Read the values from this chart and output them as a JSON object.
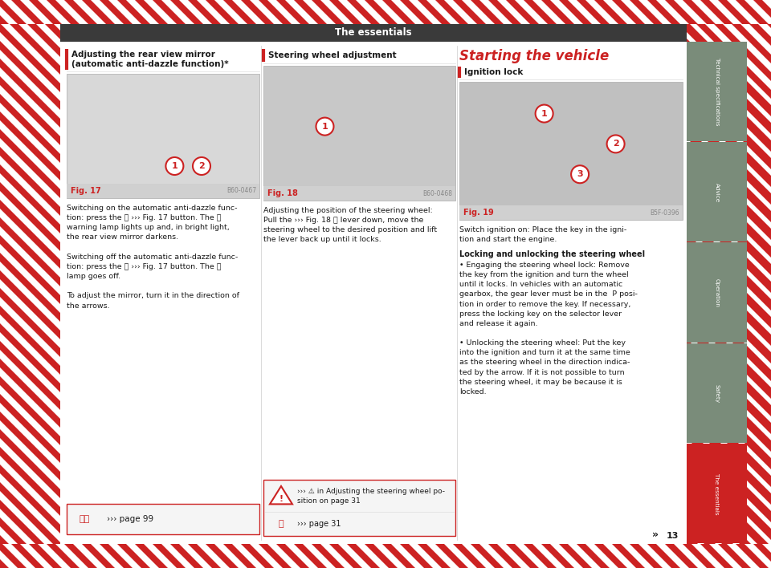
{
  "page_bg": "#ffffff",
  "hatch_red": "#cc2222",
  "header_bg": "#3a3a3a",
  "header_text": "The essentials",
  "header_text_color": "#ffffff",
  "tab_bg_gray": "#7a8c7a",
  "tab_bg_active": "#cc2222",
  "tab_text_color": "#ffffff",
  "tabs": [
    "Technical specifications",
    "Advice",
    "Operation",
    "Safety",
    "The essentials"
  ],
  "red_color": "#cc2222",
  "body_color": "#1a1a1a",
  "page_number": "13",
  "double_arrow": "»",
  "section1_title_line1": "Adjusting the rear view mirror",
  "section1_title_line2": "(automatic anti-dazzle function)*",
  "section2_title": "Steering wheel adjustment",
  "section3_title": "Starting the vehicle",
  "section3_subtitle": "Ignition lock",
  "fig17_label": "Fig. 17",
  "fig17_code": "B60-0467",
  "fig18_label": "Fig. 18",
  "fig18_code": "B60-0468",
  "fig19_label": "Fig. 19",
  "fig19_code": "B5F-0396",
  "s1_body1": "Switching on the automatic anti-dazzle func-\ntion: press the",
  "s1_body1b": "›››",
  "s1_body1c": "Fig. 17",
  "s1_body1d": "button. The",
  "s1_body2": "warning lamp lights up and, in bright light,\nthe rear view mirror darkens.\n\nSwitching off the automatic anti-dazzle func-\ntion: press the",
  "s1_body3": "To adjust the mirror, turn it in the direction of\nthe arrows.",
  "s1_ref": "››› page 99",
  "s2_body": "Adjusting the position of the steering wheel:\nPull the ››› Fig. 18",
  "s2_body2": "lever down, move the\nsteering wheel to the desired position and lift\nthe lever back up until it locks.",
  "s2_warn_text": "››› ⚠ in Adjusting the steering wheel po-\nsition on page 31",
  "s2_ref": "››› page 31",
  "s3_body1": "Switch ignition on: Place the key in the igni-\ntion and start the engine.",
  "s3_subtitle2": "Locking and unlocking the steering wheel",
  "s3_body2": "• Engaging the steering wheel lock: Remove\nthe key from the ignition and turn the wheel\nuntil it locks. In vehicles with an automatic\ngearbox, the gear lever must be in the  P posi-\ntion in order to remove the key. If necessary,\npress the locking key on the selector lever\nand release it again.\n\n• Unlocking the steering wheel: Put the key\ninto the ignition and turn it at the same time\nas the steering wheel in the direction indica-\nted by the arrow. If it is not possible to turn\nthe steering wheel, it may be because it is\nlocked.",
  "img_gray1": "#d8d8d8",
  "img_gray2": "#c8c8c8",
  "img_gray3": "#c0c0c0",
  "fig_label_bg": "#d0d0d0",
  "ref_box_bg": "#f5f5f5",
  "ref_box_border": "#cc2222",
  "warn_box_bg": "#f5f5f5",
  "warn_box_border": "#cc2222"
}
